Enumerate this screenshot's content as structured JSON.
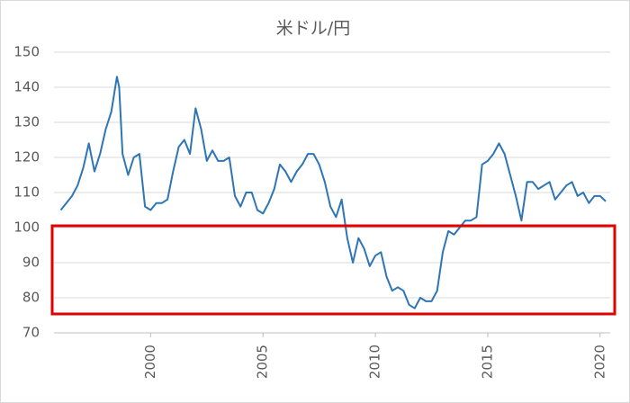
{
  "chart_data": {
    "type": "line",
    "title": "米ドル/円",
    "x": [
      1996.0,
      1996.25,
      1996.5,
      1996.75,
      1997.0,
      1997.25,
      1997.5,
      1997.75,
      1998.0,
      1998.25,
      1998.5,
      1998.6,
      1998.75,
      1999.0,
      1999.25,
      1999.5,
      1999.75,
      2000.0,
      2000.25,
      2000.5,
      2000.75,
      2001.0,
      2001.25,
      2001.5,
      2001.75,
      2002.0,
      2002.25,
      2002.5,
      2002.75,
      2003.0,
      2003.25,
      2003.5,
      2003.75,
      2004.0,
      2004.25,
      2004.5,
      2004.75,
      2005.0,
      2005.25,
      2005.5,
      2005.75,
      2006.0,
      2006.25,
      2006.5,
      2006.75,
      2007.0,
      2007.25,
      2007.5,
      2007.75,
      2008.0,
      2008.25,
      2008.5,
      2008.75,
      2009.0,
      2009.25,
      2009.5,
      2009.75,
      2010.0,
      2010.25,
      2010.5,
      2010.75,
      2011.0,
      2011.25,
      2011.5,
      2011.75,
      2012.0,
      2012.25,
      2012.5,
      2012.75,
      2013.0,
      2013.25,
      2013.5,
      2013.75,
      2014.0,
      2014.25,
      2014.5,
      2014.75,
      2015.0,
      2015.25,
      2015.5,
      2015.75,
      2016.0,
      2016.25,
      2016.5,
      2016.75,
      2017.0,
      2017.25,
      2017.5,
      2017.75,
      2018.0,
      2018.25,
      2018.5,
      2018.75,
      2019.0,
      2019.25,
      2019.5,
      2019.75,
      2020.0,
      2020.25
    ],
    "series": [
      {
        "color": "#2e75b6",
        "values": [
          105,
          107,
          109,
          112,
          117,
          124,
          116,
          121,
          128,
          133,
          143,
          140,
          121,
          115,
          120,
          121,
          106,
          105,
          107,
          107,
          108,
          116,
          123,
          125,
          121,
          134,
          128,
          119,
          122,
          119,
          119,
          120,
          109,
          106,
          110,
          110,
          105,
          104,
          107,
          111,
          118,
          116,
          113,
          116,
          118,
          121,
          121,
          118,
          113,
          106,
          103,
          108,
          97,
          90,
          97,
          94,
          89,
          92,
          93,
          86,
          82,
          83,
          82,
          78,
          77,
          80,
          79,
          79,
          82,
          93,
          99,
          98,
          100,
          102,
          102,
          103,
          118,
          119,
          121,
          124,
          121,
          115,
          109,
          102,
          113,
          113,
          111,
          112,
          113,
          108,
          110,
          112,
          113,
          109,
          110,
          107,
          109,
          109,
          107.5
        ]
      }
    ],
    "xlim": [
      1995.7,
      2020.45
    ],
    "xticks": [
      2000,
      2005,
      2010,
      2015,
      2020
    ],
    "ylim": [
      70,
      150
    ],
    "yticks": [
      70,
      80,
      90,
      100,
      110,
      120,
      130,
      140,
      150
    ],
    "grid": true
  }
}
